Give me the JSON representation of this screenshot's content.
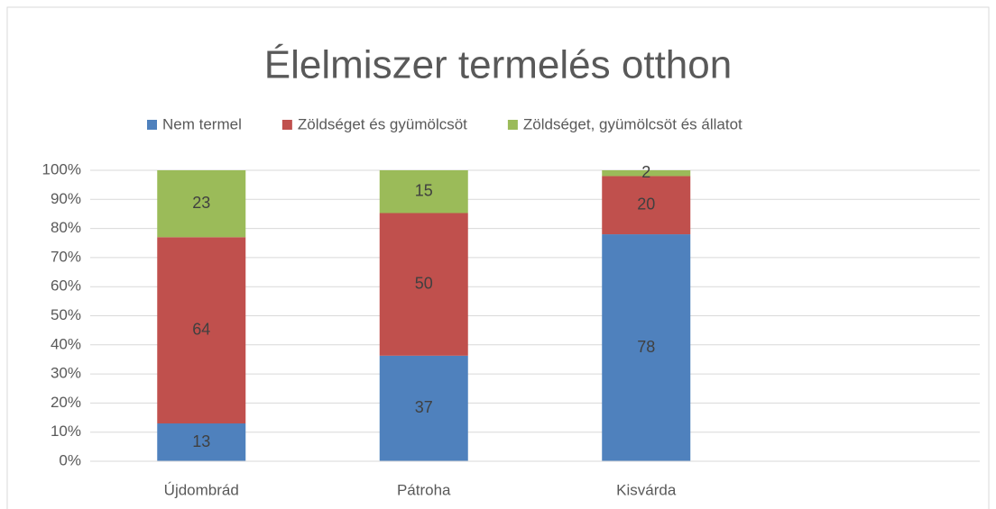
{
  "chart_data": {
    "type": "bar",
    "stack": "percent",
    "title": "Élelmiszer termelés otthon",
    "categories": [
      "Újdombrád",
      "Pátroha",
      "Kisvárda",
      null
    ],
    "series": [
      {
        "name": "Nem termel",
        "color": "#4f81bd",
        "values": [
          13,
          37,
          78,
          null
        ]
      },
      {
        "name": "Zöldséget és gyümölcsöt",
        "color": "#c0504d",
        "values": [
          64,
          50,
          20,
          null
        ]
      },
      {
        "name": "Zöldséget, gyümölcsöt és állatot",
        "color": "#9bbb59",
        "values": [
          23,
          15,
          2,
          null
        ]
      }
    ],
    "ylim": [
      0,
      100
    ],
    "yticks": [
      {
        "value": 0,
        "label": "0%"
      },
      {
        "value": 10,
        "label": "10%"
      },
      {
        "value": 20,
        "label": "20%"
      },
      {
        "value": 30,
        "label": "30%"
      },
      {
        "value": 40,
        "label": "40%"
      },
      {
        "value": 50,
        "label": "50%"
      },
      {
        "value": 60,
        "label": "60%"
      },
      {
        "value": 70,
        "label": "70%"
      },
      {
        "value": 80,
        "label": "80%"
      },
      {
        "value": 90,
        "label": "90%"
      },
      {
        "value": 100,
        "label": "100%"
      }
    ],
    "grid": true,
    "legend": "top"
  }
}
